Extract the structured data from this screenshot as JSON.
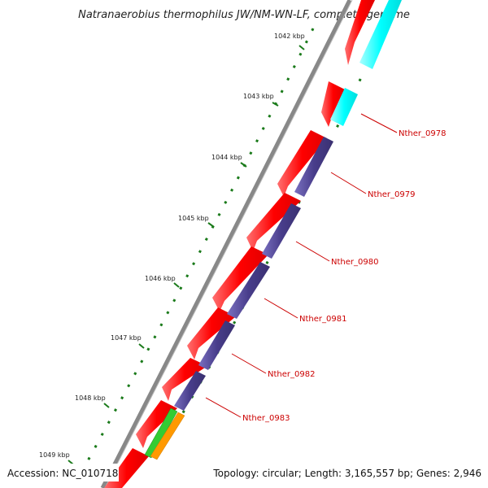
{
  "title": "Natranaerobius thermophilus JW/NM-WN-LF, complete genome",
  "accession": "Accession: NC_010718",
  "summary": "Topology: circular; Length: 3,165,557 bp; Genes: 2,946",
  "kbp_labels": [
    "1042 kbp",
    "1043 kbp",
    "1044 kbp",
    "1045 kbp",
    "1046 kbp",
    "1047 kbp",
    "1048 kbp",
    "1049 kbp"
  ],
  "gene_labels": [
    "Nther_0978",
    "Nther_0979",
    "Nther_0980",
    "Nther_0981",
    "Nther_0982",
    "Nther_0983"
  ],
  "colors": {
    "backbone": "#808080",
    "red_track": "#ff0000",
    "cyan_track": "#00ffff",
    "purple_track": "#483d8b",
    "green_feature": "#33cc33",
    "orange_feature": "#ff9900",
    "ticks": "#1a7a1a",
    "label_text": "#cc0000"
  }
}
